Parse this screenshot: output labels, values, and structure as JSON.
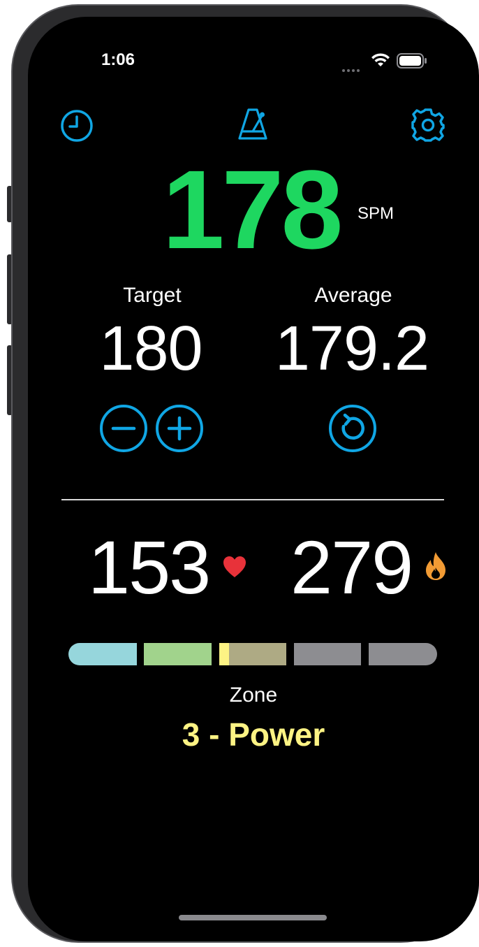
{
  "status_bar": {
    "time": "1:06"
  },
  "toolbar": {
    "history_icon": "clock-icon",
    "metronome_icon": "metronome-icon",
    "settings_icon": "gear-icon"
  },
  "cadence": {
    "value": "178",
    "unit": "SPM"
  },
  "target": {
    "label": "Target",
    "value": "180"
  },
  "average": {
    "label": "Average",
    "value": "179.2"
  },
  "heart_rate": {
    "value": "153",
    "icon": "heart-icon"
  },
  "calories": {
    "value": "279",
    "icon": "flame-icon"
  },
  "zone": {
    "label": "Zone",
    "name": "3 - Power",
    "segments": [
      "#96d6dc",
      "#a1d38c",
      "#aeaa84",
      "#8d8d91",
      "#8d8d91"
    ],
    "current_marker_color": "#fdf384",
    "position_within_zone": 0.15
  },
  "colors": {
    "accent": "#10a6e4",
    "cadence": "#1ed760",
    "heart": "#e8323a",
    "flame": "#f29b34",
    "zone_name": "#fdf384"
  }
}
